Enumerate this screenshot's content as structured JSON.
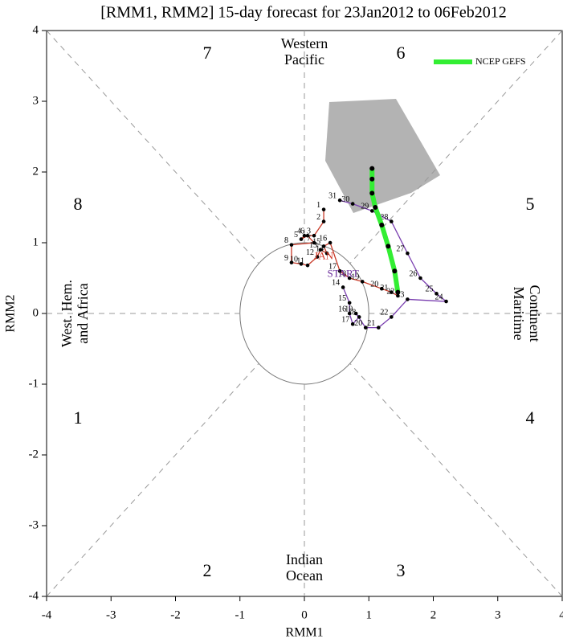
{
  "chart_data": {
    "type": "line",
    "title": "[RMM1, RMM2] 15-day forecast for 23Jan2012 to 06Feb2012",
    "xlabel": "RMM1",
    "ylabel": "RMM2",
    "xlim": [
      -4,
      4
    ],
    "ylim": [
      -4,
      4
    ],
    "xticks": [
      -4,
      -3,
      -2,
      -1,
      0,
      1,
      2,
      3,
      4
    ],
    "yticks": [
      -4,
      -3,
      -2,
      -1,
      0,
      1,
      2,
      3,
      4
    ],
    "legend": "upper right",
    "phase_labels": [
      "1",
      "2",
      "3",
      "4",
      "5",
      "6",
      "7",
      "8"
    ],
    "region_labels": [
      [
        "Western",
        "Pacific"
      ],
      [
        "Maritime",
        "Continent"
      ],
      [
        "Indian",
        "Ocean"
      ],
      [
        "West. Hem.",
        "and Africa"
      ]
    ],
    "annotations": [
      {
        "text": "START",
        "x": 0.6,
        "y": 0.55,
        "color": "#6a2c9a"
      },
      {
        "text": "JAN",
        "x": 0.3,
        "y": 0.8,
        "color": "#d03020"
      }
    ],
    "series": [
      {
        "color": "#7a3fb0",
        "x": [
          0.6,
          0.7,
          0.7,
          0.75,
          0.85,
          0.8,
          0.95,
          1.15,
          1.35,
          1.6,
          2.2,
          2.05,
          1.8,
          1.6,
          1.35,
          1.05,
          0.75,
          0.55
        ],
        "y": [
          0.37,
          0.15,
          0.0,
          -0.15,
          -0.05,
          0.0,
          -0.2,
          -0.2,
          -0.05,
          0.2,
          0.17,
          0.28,
          0.5,
          0.85,
          1.3,
          1.45,
          1.55,
          1.6
        ],
        "point_labels": [
          "14",
          "15",
          "16",
          "17",
          "18",
          "19",
          "20",
          "21",
          "22",
          "23",
          "24",
          "25",
          "26",
          "27",
          "28",
          "29",
          "30",
          "31"
        ]
      },
      {
        "color": "#c83a28",
        "x": [
          0.3,
          0.3,
          0.15,
          0.0,
          -0.05,
          0.05,
          0.15,
          -0.2,
          -0.2,
          -0.05,
          0.05,
          0.2,
          0.25,
          0.35,
          0.3,
          0.4,
          0.55,
          0.7,
          0.9,
          1.2,
          1.35,
          1.45
        ],
        "y": [
          1.47,
          1.3,
          1.1,
          1.1,
          1.05,
          1.1,
          1.0,
          0.97,
          0.72,
          0.7,
          0.68,
          0.8,
          0.9,
          0.85,
          0.95,
          1.0,
          0.6,
          0.5,
          0.45,
          0.35,
          0.3,
          0.25
        ],
        "point_labels": [
          "1",
          "2",
          "3",
          "4",
          "5",
          "6",
          "7",
          "8",
          "9",
          "10",
          "11",
          "12",
          "13",
          "14",
          "15",
          "16",
          "17",
          "18",
          "19",
          "20",
          "21",
          "22"
        ]
      },
      {
        "name": "NCEP GEFS",
        "color": "#33ee33",
        "x": [
          1.45,
          1.4,
          1.3,
          1.2,
          1.1,
          1.05,
          1.05,
          1.05
        ],
        "y": [
          0.3,
          0.6,
          0.95,
          1.25,
          1.5,
          1.7,
          1.9,
          2.05
        ]
      }
    ]
  }
}
